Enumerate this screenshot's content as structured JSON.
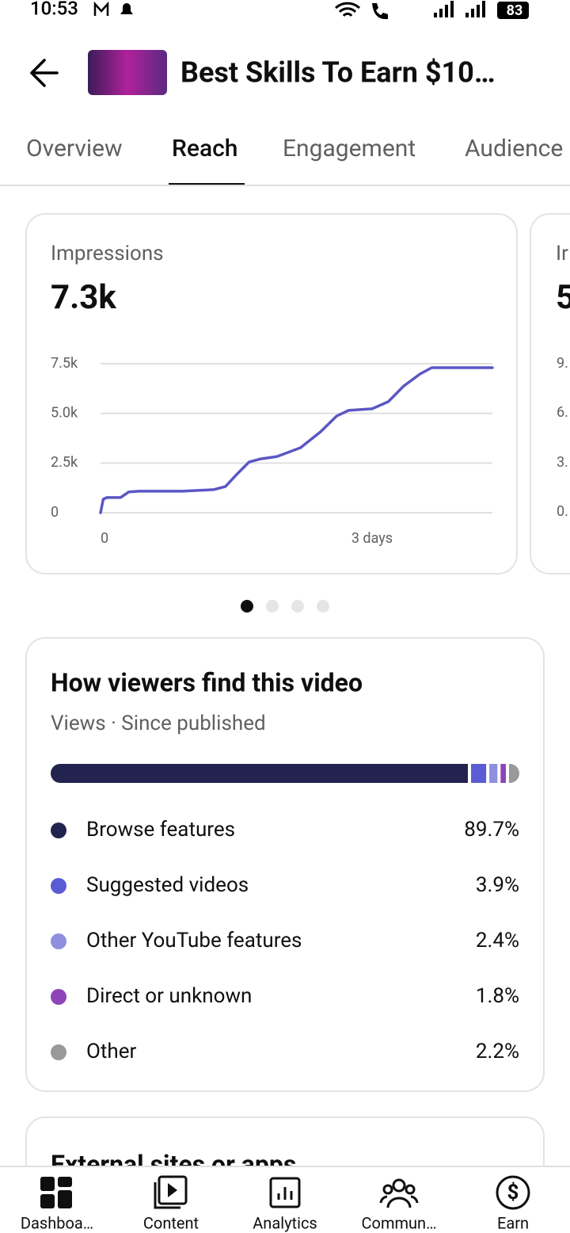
{
  "status_bar": {
    "time": "10:53",
    "battery": "83"
  },
  "header": {
    "title": "Best Skills To Earn $10…"
  },
  "tabs": [
    "Overview",
    "Reach",
    "Engagement",
    "Audience"
  ],
  "active_tab": 1,
  "chart_data": {
    "type": "line",
    "title": "Impressions",
    "subtitle": "7.3k",
    "color": "#5b57c4",
    "x": [
      0,
      0.03,
      0.07,
      0.22,
      0.31,
      0.42,
      0.9,
      1.25,
      1.38,
      1.51,
      1.64,
      1.77,
      1.95,
      2.21,
      2.43,
      2.61,
      2.74,
      3.0,
      3.18,
      3.35,
      3.53,
      3.66,
      4.33
    ],
    "values": [
      0,
      680,
      760,
      760,
      1040,
      1080,
      1080,
      1160,
      1320,
      1950,
      2550,
      2710,
      2830,
      3270,
      4070,
      4870,
      5150,
      5230,
      5590,
      6380,
      6980,
      7300,
      7300
    ],
    "xlim": [
      0,
      4.33
    ],
    "xticks": [
      0,
      {
        "value": 3,
        "label": "3 days"
      }
    ],
    "ylim": [
      0,
      7500
    ],
    "yticks": [
      0,
      {
        "value": 2500,
        "label": "2.5k"
      },
      {
        "value": 5000,
        "label": "5.0k"
      },
      {
        "value": 7500,
        "label": "7.5k"
      }
    ],
    "grid": true
  },
  "peek_card": {
    "title": "Ir",
    "value": "5",
    "ticks": [
      "9.",
      "6.",
      "3.",
      "0."
    ]
  },
  "traffic": {
    "title": "How viewers find this video",
    "subtitle": "Views · Since published",
    "categories": [
      "Browse features",
      "Suggested videos",
      "Other YouTube features",
      "Direct or unknown",
      "Other"
    ],
    "values": [
      89.7,
      3.9,
      2.4,
      1.8,
      2.2
    ],
    "value_labels": [
      "89.7%",
      "3.9%",
      "2.4%",
      "1.8%",
      "2.2%"
    ],
    "colors": [
      "#23234f",
      "#5b5bd6",
      "#8f8fe0",
      "#8e44b8",
      "#999999"
    ]
  },
  "next_card": {
    "title": "External sites or apps"
  },
  "nav": [
    "Dashboa…",
    "Content",
    "Analytics",
    "Commun…",
    "Earn"
  ]
}
